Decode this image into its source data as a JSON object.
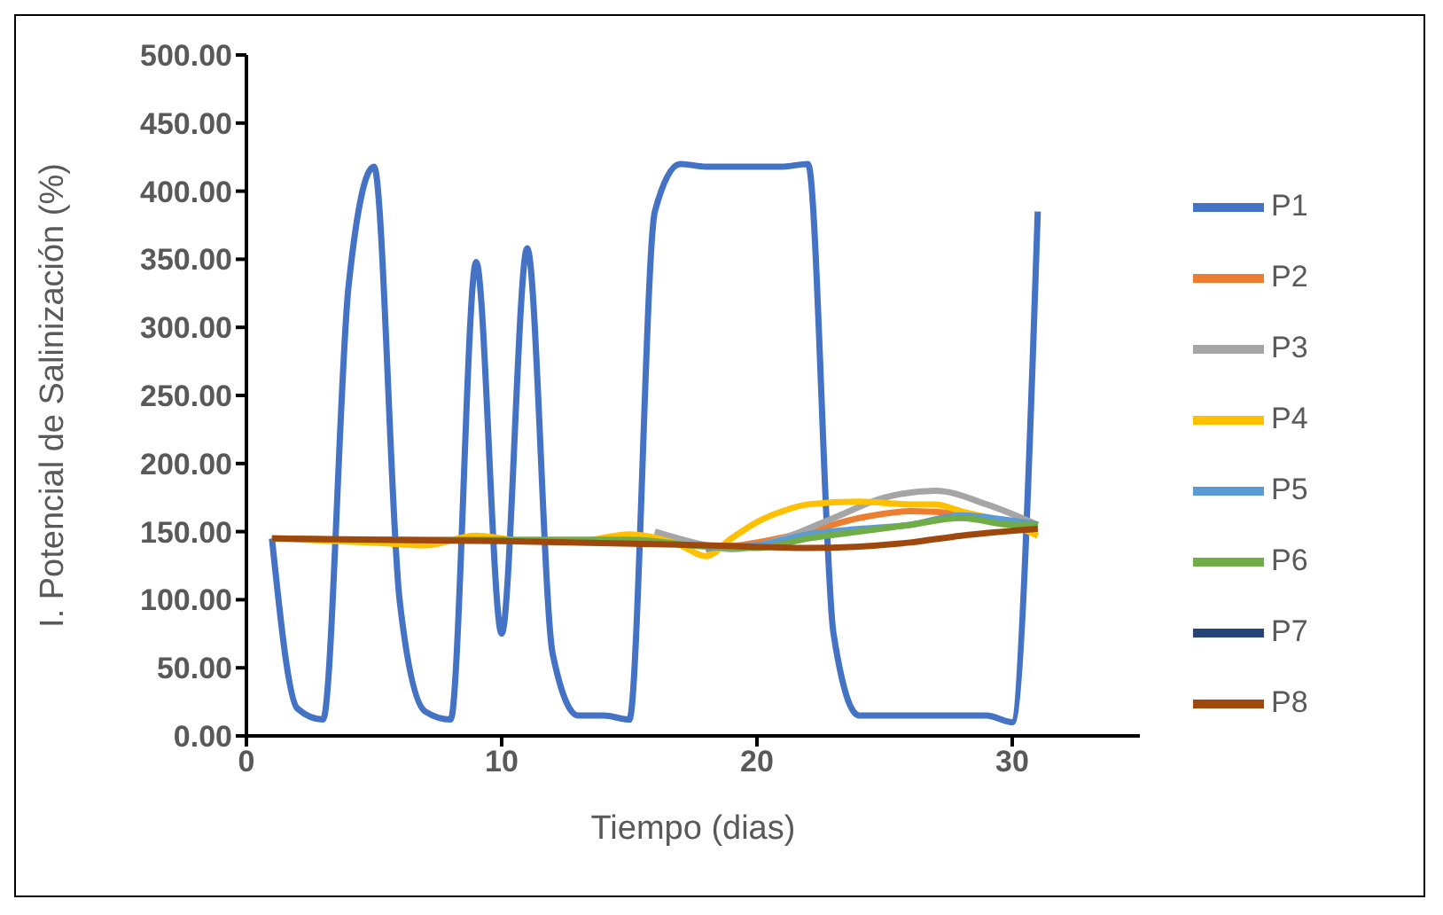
{
  "chart_data": {
    "type": "line",
    "xlabel": "Tiempo (dias)",
    "ylabel": "I. Potencial de Salinización (%)",
    "xlim": [
      0,
      35
    ],
    "xticks": [
      0,
      10,
      20,
      30
    ],
    "ylim": [
      0,
      500
    ],
    "yticks": [
      {
        "value": 0,
        "label": "0.00"
      },
      {
        "value": 50,
        "label": "50.00"
      },
      {
        "value": 100,
        "label": "100.00"
      },
      {
        "value": 150,
        "label": "150.00"
      },
      {
        "value": 200,
        "label": "200.00"
      },
      {
        "value": 250,
        "label": "250.00"
      },
      {
        "value": 300,
        "label": "300.00"
      },
      {
        "value": 350,
        "label": "350.00"
      },
      {
        "value": 400,
        "label": "400.00"
      },
      {
        "value": 450,
        "label": "450.00"
      },
      {
        "value": 500,
        "label": "500.00"
      }
    ],
    "grid": false,
    "legend": "right",
    "marker": "none",
    "line_style": "solid",
    "series": [
      {
        "name": "P1",
        "color": "#4472c4",
        "x": [
          1,
          2,
          3,
          4,
          5,
          6,
          7,
          8,
          9,
          10,
          11,
          12,
          13,
          14,
          15,
          16,
          17,
          18,
          19,
          20,
          21,
          22,
          23,
          24,
          25,
          26,
          27,
          28,
          29,
          30,
          31
        ],
        "values": [
          145,
          20,
          12,
          330,
          418,
          100,
          18,
          12,
          348,
          75,
          358,
          60,
          15,
          15,
          12,
          385,
          420,
          418,
          418,
          418,
          418,
          420,
          75,
          15,
          15,
          15,
          15,
          15,
          15,
          10,
          385
        ]
      },
      {
        "name": "P2",
        "color": "#ed7d31",
        "x": [
          18,
          20,
          22,
          24,
          26,
          28,
          30,
          31
        ],
        "values": [
          137,
          142,
          150,
          160,
          165,
          163,
          155,
          153
        ]
      },
      {
        "name": "P3",
        "color": "#a5a5a5",
        "x": [
          16,
          18,
          19,
          21,
          23,
          25,
          27,
          29,
          31
        ],
        "values": [
          150,
          140,
          137,
          145,
          160,
          175,
          180,
          170,
          155
        ]
      },
      {
        "name": "P4",
        "color": "#ffc000",
        "x": [
          1,
          5,
          7,
          9,
          11,
          13,
          15,
          17,
          18,
          19,
          20,
          21,
          22,
          24,
          26,
          27,
          28,
          30,
          31
        ],
        "values": [
          145,
          142,
          140,
          147,
          143,
          143,
          148,
          140,
          132,
          145,
          157,
          165,
          170,
          172,
          170,
          170,
          165,
          155,
          147
        ]
      },
      {
        "name": "P5",
        "color": "#5b9bd5",
        "x": [
          18,
          20,
          22,
          24,
          26,
          28,
          30,
          31
        ],
        "values": [
          138,
          140,
          148,
          152,
          155,
          162,
          158,
          155
        ]
      },
      {
        "name": "P6",
        "color": "#70ad47",
        "x": [
          1,
          5,
          10,
          15,
          18,
          20,
          22,
          24,
          26,
          28,
          30,
          31
        ],
        "values": [
          145,
          144,
          144,
          144,
          139,
          138,
          145,
          150,
          155,
          160,
          155,
          155
        ]
      },
      {
        "name": "P7",
        "color": "#264478"
      },
      {
        "name": "P8",
        "color": "#9e480e",
        "x": [
          1,
          10,
          18,
          22,
          26,
          28,
          31
        ],
        "values": [
          145,
          143,
          140,
          138,
          142,
          147,
          152
        ]
      }
    ]
  }
}
